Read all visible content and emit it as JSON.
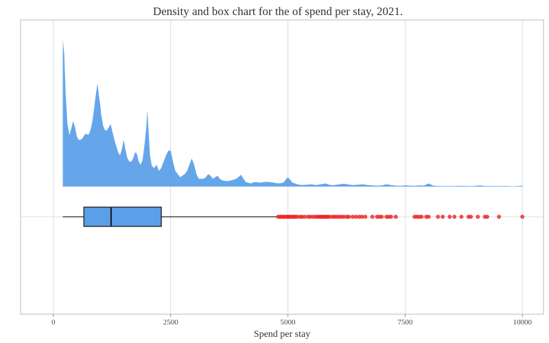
{
  "chart_data": {
    "type": "density+box",
    "title": "Density and box chart for the of spend per stay, 2021.",
    "xlabel": "Spend per stay",
    "ylabel": "",
    "xlim": [
      -700,
      10450
    ],
    "x_ticks": [
      0,
      2500,
      5000,
      7500,
      10000
    ],
    "x_tick_labels": [
      "0",
      "2500",
      "5000",
      "7500",
      "10000"
    ],
    "grid": true,
    "colors": {
      "density_fill": "#4a96e6",
      "box_fill": "#5a9fe8",
      "outlier": "#ee2222",
      "line": "#222222"
    },
    "density": {
      "x": [
        200,
        230,
        260,
        300,
        340,
        380,
        420,
        460,
        500,
        540,
        580,
        620,
        660,
        700,
        740,
        780,
        820,
        860,
        900,
        940,
        980,
        1000,
        1020,
        1060,
        1100,
        1140,
        1180,
        1220,
        1260,
        1300,
        1340,
        1380,
        1420,
        1460,
        1500,
        1540,
        1580,
        1620,
        1660,
        1700,
        1740,
        1780,
        1820,
        1860,
        1900,
        1940,
        1980,
        2000,
        2020,
        2060,
        2100,
        2150,
        2200,
        2250,
        2300,
        2350,
        2400,
        2450,
        2500,
        2550,
        2600,
        2650,
        2700,
        2750,
        2800,
        2850,
        2900,
        2950,
        3000,
        3050,
        3100,
        3150,
        3200,
        3250,
        3300,
        3350,
        3400,
        3450,
        3500,
        3550,
        3600,
        3700,
        3800,
        3900,
        4000,
        4100,
        4200,
        4300,
        4400,
        4500,
        4600,
        4700,
        4800,
        4900,
        5000,
        5100,
        5200,
        5300,
        5400,
        5500,
        5600,
        5700,
        5800,
        5900,
        6000,
        6100,
        6200,
        6300,
        6400,
        6500,
        6600,
        6700,
        6800,
        6900,
        7000,
        7100,
        7200,
        7300,
        7400,
        7500,
        7600,
        7700,
        7800,
        7900,
        8000,
        8100,
        8200,
        8300,
        8400,
        8500,
        8600,
        8700,
        8800,
        8900,
        9000,
        9100,
        9200,
        9300,
        9400,
        9500,
        9600,
        9700,
        9800,
        9900,
        10000
      ],
      "y": [
        0.94,
        0.85,
        0.6,
        0.4,
        0.33,
        0.37,
        0.42,
        0.38,
        0.32,
        0.3,
        0.3,
        0.31,
        0.33,
        0.34,
        0.33,
        0.35,
        0.4,
        0.48,
        0.58,
        0.66,
        0.56,
        0.52,
        0.46,
        0.39,
        0.36,
        0.36,
        0.38,
        0.4,
        0.35,
        0.3,
        0.26,
        0.22,
        0.2,
        0.24,
        0.3,
        0.23,
        0.18,
        0.16,
        0.16,
        0.18,
        0.22,
        0.21,
        0.16,
        0.14,
        0.17,
        0.26,
        0.38,
        0.49,
        0.4,
        0.2,
        0.13,
        0.12,
        0.14,
        0.1,
        0.12,
        0.16,
        0.2,
        0.23,
        0.23,
        0.16,
        0.1,
        0.08,
        0.06,
        0.07,
        0.08,
        0.1,
        0.14,
        0.18,
        0.14,
        0.08,
        0.05,
        0.05,
        0.05,
        0.06,
        0.08,
        0.07,
        0.05,
        0.06,
        0.07,
        0.05,
        0.04,
        0.035,
        0.04,
        0.05,
        0.075,
        0.03,
        0.02,
        0.03,
        0.025,
        0.03,
        0.03,
        0.025,
        0.02,
        0.025,
        0.06,
        0.025,
        0.015,
        0.01,
        0.012,
        0.015,
        0.01,
        0.015,
        0.02,
        0.01,
        0.01,
        0.015,
        0.018,
        0.012,
        0.01,
        0.012,
        0.015,
        0.01,
        0.008,
        0.006,
        0.008,
        0.015,
        0.01,
        0.006,
        0.005,
        0.008,
        0.006,
        0.005,
        0.008,
        0.006,
        0.02,
        0.006,
        0.004,
        0.003,
        0.004,
        0.003,
        0.004,
        0.005,
        0.004,
        0.003,
        0.005,
        0.008,
        0.004,
        0.003,
        0.004,
        0.003,
        0.004,
        0.003,
        0.002,
        0.003,
        0.006
      ]
    },
    "box": {
      "whisker_low": 200,
      "q1": 650,
      "median": 1230,
      "q3": 2300,
      "whisker_high": 4780
    },
    "outliers": [
      4790,
      4830,
      4860,
      4900,
      4930,
      4970,
      5000,
      5030,
      5060,
      5100,
      5130,
      5160,
      5200,
      5260,
      5300,
      5360,
      5430,
      5480,
      5530,
      5580,
      5630,
      5660,
      5700,
      5730,
      5760,
      5800,
      5830,
      5860,
      5900,
      5960,
      6000,
      6050,
      6100,
      6150,
      6200,
      6260,
      6300,
      6380,
      6450,
      6520,
      6580,
      6650,
      6800,
      6900,
      6950,
      7000,
      7100,
      7150,
      7200,
      7300,
      7700,
      7750,
      7800,
      7850,
      7950,
      8000,
      8200,
      8300,
      8450,
      8550,
      8700,
      8850,
      8900,
      9050,
      9200,
      9250,
      9500,
      10000
    ]
  }
}
